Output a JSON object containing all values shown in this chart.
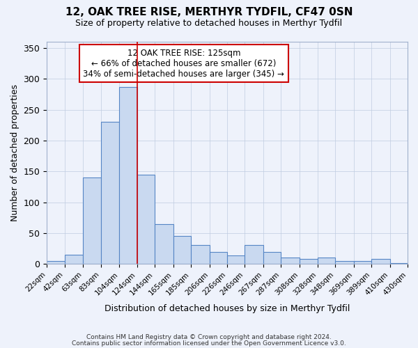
{
  "title": "12, OAK TREE RISE, MERTHYR TYDFIL, CF47 0SN",
  "subtitle": "Size of property relative to detached houses in Merthyr Tydfil",
  "xlabel": "Distribution of detached houses by size in Merthyr Tydfil",
  "ylabel": "Number of detached properties",
  "bin_edges": [
    22,
    42,
    63,
    83,
    104,
    124,
    144,
    165,
    185,
    206,
    226,
    246,
    267,
    287,
    308,
    328,
    348,
    369,
    389,
    410,
    430
  ],
  "bar_values": [
    5,
    15,
    140,
    230,
    287,
    145,
    65,
    46,
    31,
    20,
    14,
    31,
    20,
    11,
    8,
    10,
    5,
    5,
    8,
    2
  ],
  "bar_color": "#c9d9f0",
  "bar_edge_color": "#5585c5",
  "vline_x": 124,
  "vline_color": "#cc0000",
  "annotation_title": "12 OAK TREE RISE: 125sqm",
  "annotation_line1": "← 66% of detached houses are smaller (672)",
  "annotation_line2": "34% of semi-detached houses are larger (345) →",
  "annotation_box_color": "#cc0000",
  "ylim": [
    0,
    360
  ],
  "yticks": [
    0,
    50,
    100,
    150,
    200,
    250,
    300,
    350
  ],
  "footer1": "Contains HM Land Registry data © Crown copyright and database right 2024.",
  "footer2": "Contains public sector information licensed under the Open Government Licence v3.0.",
  "bg_color": "#eef2fb"
}
